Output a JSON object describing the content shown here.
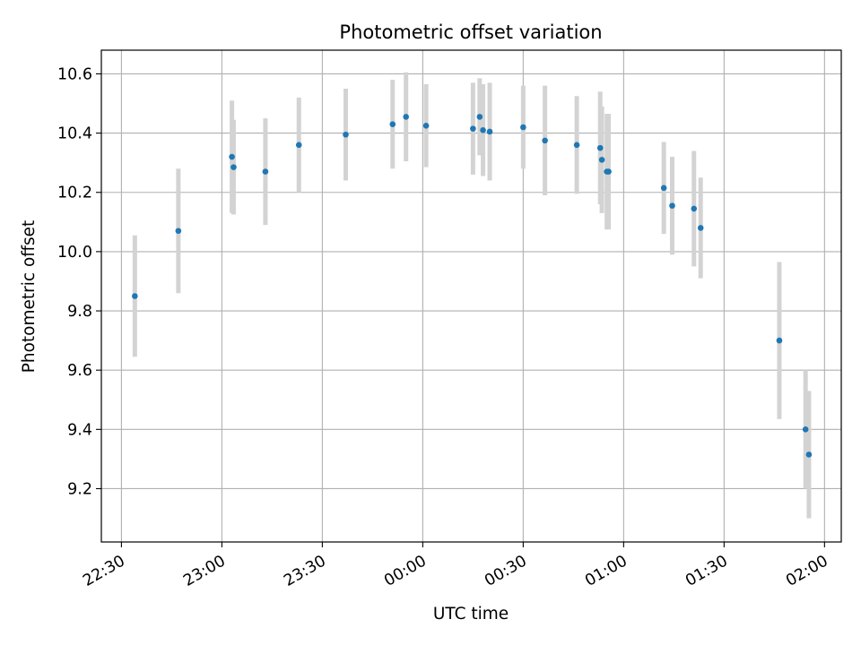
{
  "chart_data": {
    "type": "scatter",
    "title": "Photometric offset variation",
    "xlabel": "UTC time",
    "ylabel": "Photometric offset",
    "x_is_time": true,
    "x_tick_labels": [
      "22:30",
      "23:00",
      "23:30",
      "00:00",
      "00:30",
      "01:00",
      "01:30",
      "02:00"
    ],
    "y_tick_labels": [
      "9.2",
      "9.4",
      "9.6",
      "9.8",
      "10.0",
      "10.2",
      "10.4",
      "10.6"
    ],
    "xlim": [
      "22:24:00",
      "02:05:00"
    ],
    "ylim": [
      9.02,
      10.68
    ],
    "grid": true,
    "colors": {
      "points": "#1f77b4",
      "error_bars": "#d3d3d3",
      "grid": "#b0b0b0",
      "axes": "#000000"
    },
    "series": [
      {
        "x": [
          "22:34:00",
          "22:47:00",
          "23:03:00",
          "23:03:30",
          "23:13:00",
          "23:23:00",
          "23:37:00",
          "23:51:00",
          "23:55:00",
          "00:01:00",
          "00:15:00",
          "00:17:00",
          "00:18:00",
          "00:20:00",
          "00:30:00",
          "00:36:30",
          "00:46:00",
          "00:53:00",
          "00:53:30",
          "00:55:00",
          "00:55:30",
          "01:12:00",
          "01:14:30",
          "01:21:00",
          "01:23:00",
          "01:46:30",
          "01:54:20",
          "01:55:20"
        ],
        "y": [
          9.85,
          10.07,
          10.32,
          10.285,
          10.27,
          10.36,
          10.395,
          10.43,
          10.455,
          10.425,
          10.415,
          10.455,
          10.41,
          10.405,
          10.42,
          10.375,
          10.36,
          10.35,
          10.31,
          10.27,
          10.27,
          10.215,
          10.155,
          10.145,
          10.08,
          9.7,
          9.4,
          9.315
        ],
        "err": [
          0.205,
          0.21,
          0.19,
          0.16,
          0.18,
          0.16,
          0.155,
          0.15,
          0.15,
          0.14,
          0.155,
          0.13,
          0.155,
          0.165,
          0.14,
          0.185,
          0.165,
          0.19,
          0.18,
          0.195,
          0.195,
          0.155,
          0.165,
          0.195,
          0.17,
          0.265,
          0.2,
          0.215
        ]
      }
    ]
  }
}
